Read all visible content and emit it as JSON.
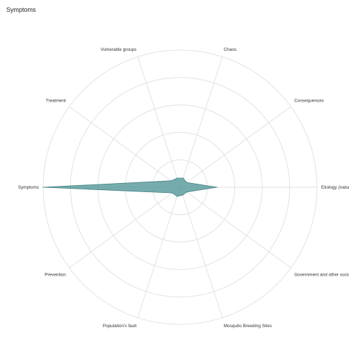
{
  "chart_data": {
    "type": "radar",
    "title": "Symptoms",
    "axes": [
      "Chaos",
      "Consequences",
      "Etiology (natural ca",
      "Government and other social causes",
      "Mosquito Breeding Sites",
      "Population's fault",
      "Prevention",
      "Symptoms",
      "Treatment",
      "Vulnerable groups"
    ],
    "series": [
      {
        "values": [
          0.07,
          0.06,
          0.27,
          0.06,
          0.06,
          0.07,
          0.07,
          1.0,
          0.08,
          0.07
        ]
      }
    ],
    "rlim": [
      0,
      1
    ],
    "grid_rings": 5,
    "grid": true,
    "legend": "none",
    "colors": {
      "fill": "#5f9ea0",
      "fill_opacity": 0.85,
      "stroke": "#3f7f80",
      "grid": "#e2e2e2",
      "text": "#333333"
    }
  }
}
